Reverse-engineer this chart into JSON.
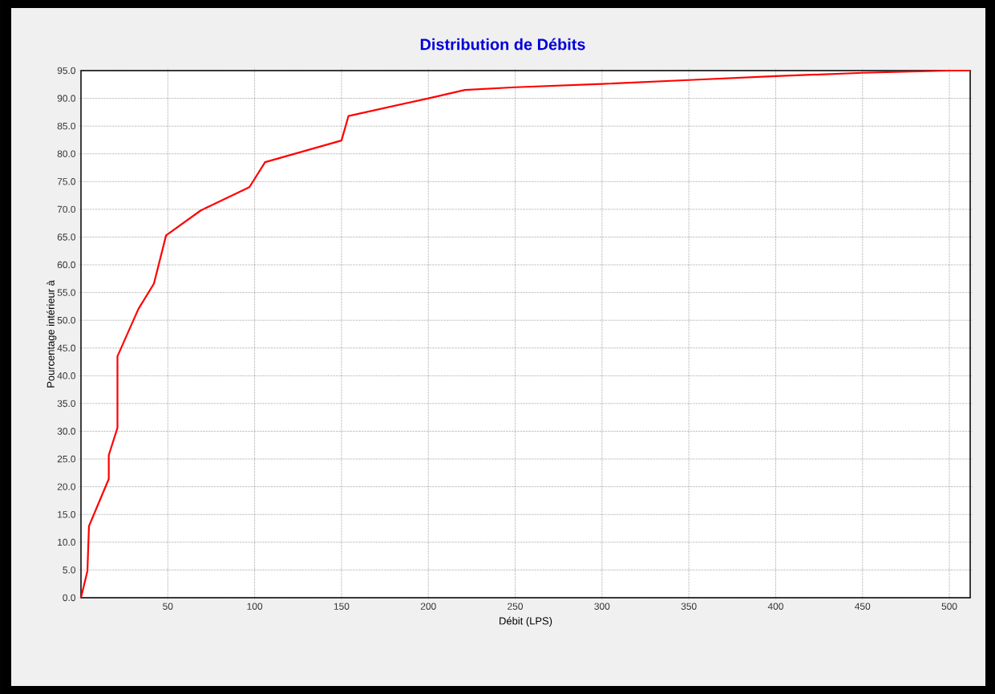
{
  "chart_data": {
    "type": "line",
    "title": "Distribution de Débits",
    "xlabel": "Débit (LPS)",
    "ylabel": "Pourcentage intérieur à",
    "x": [
      0,
      3.7,
      4.6,
      16,
      16,
      21,
      21,
      33,
      42,
      49,
      69,
      97,
      106,
      150,
      154,
      200,
      221,
      250,
      300,
      350,
      400,
      450,
      500,
      512
    ],
    "series": [
      {
        "color": "#ff0000",
        "values": [
          0,
          4.8,
          12.9,
          21.4,
          25.7,
          30.6,
          43.5,
          52,
          56.6,
          65.3,
          69.8,
          74,
          78.5,
          82.4,
          86.8,
          90,
          91.5,
          92,
          92.6,
          93.3,
          94,
          94.6,
          95,
          95
        ]
      }
    ],
    "xlim": [
      0,
      512
    ],
    "ylim": [
      0,
      95
    ],
    "xticks": [
      50,
      100,
      150,
      200,
      250,
      300,
      350,
      400,
      450,
      500
    ],
    "yticks": [
      {
        "value": 0,
        "label": "0.0"
      },
      {
        "value": 5,
        "label": "5.0"
      },
      {
        "value": 10,
        "label": "10.0"
      },
      {
        "value": 15,
        "label": "15.0"
      },
      {
        "value": 20,
        "label": "20.0"
      },
      {
        "value": 25,
        "label": "25.0"
      },
      {
        "value": 30,
        "label": "30.0"
      },
      {
        "value": 35,
        "label": "35.0"
      },
      {
        "value": 40,
        "label": "40.0"
      },
      {
        "value": 45,
        "label": "45.0"
      },
      {
        "value": 50,
        "label": "50.0"
      },
      {
        "value": 55,
        "label": "55.0"
      },
      {
        "value": 60,
        "label": "60.0"
      },
      {
        "value": 65,
        "label": "65.0"
      },
      {
        "value": 70,
        "label": "70.0"
      },
      {
        "value": 75,
        "label": "75.0"
      },
      {
        "value": 80,
        "label": "80.0"
      },
      {
        "value": 85,
        "label": "85.0"
      },
      {
        "value": 90,
        "label": "90.0"
      },
      {
        "value": 95,
        "label": "95.0"
      }
    ],
    "grid": true,
    "marker": "none",
    "line_style": "solid"
  }
}
